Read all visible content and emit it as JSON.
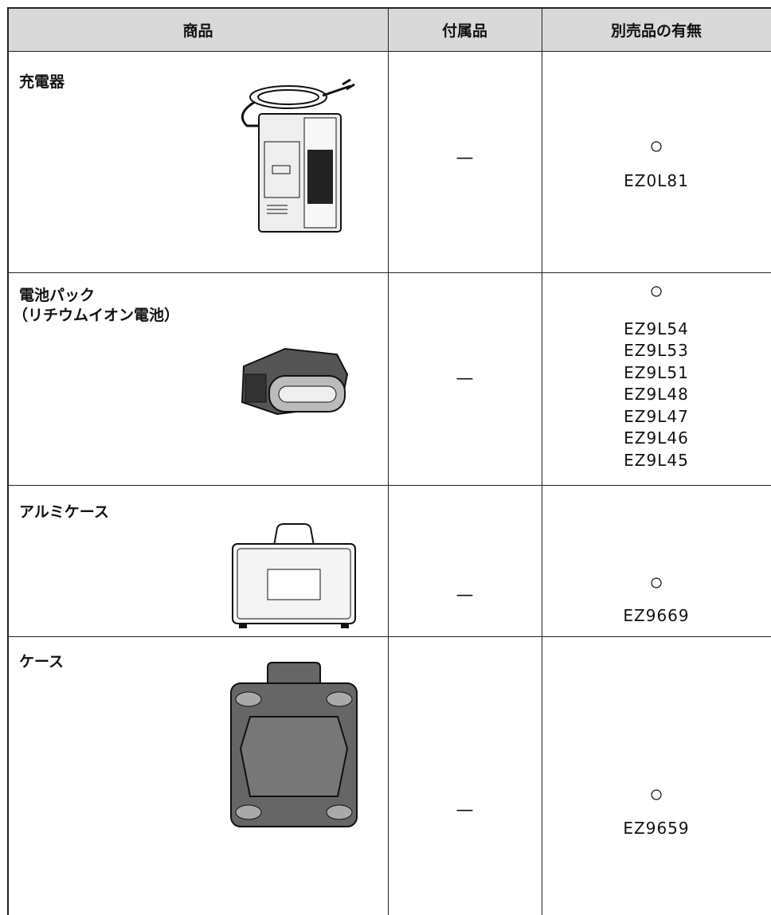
{
  "table": {
    "header": [
      "商品",
      "付属品",
      "別売品の有無"
    ],
    "rows": [
      {
        "name": [
          "充電器"
        ],
        "included": "—",
        "optional": "○",
        "models": [
          "EZ0L81"
        ]
      },
      {
        "name": [
          "電池パック",
          "（リチウムイオン電池）"
        ],
        "included": "—",
        "optional": "○",
        "models": [
          "EZ9L54",
          "EZ9L53",
          "EZ9L51",
          "EZ9L48",
          "EZ9L47",
          "EZ9L46",
          "EZ9L45"
        ]
      },
      {
        "name": [
          "アルミケース"
        ],
        "included": "—",
        "optional": "○",
        "models": [
          "EZ9669"
        ]
      },
      {
        "name": [
          "ケース"
        ],
        "included": "—",
        "optional": "○",
        "models": [
          "EZ9659"
        ]
      }
    ]
  }
}
